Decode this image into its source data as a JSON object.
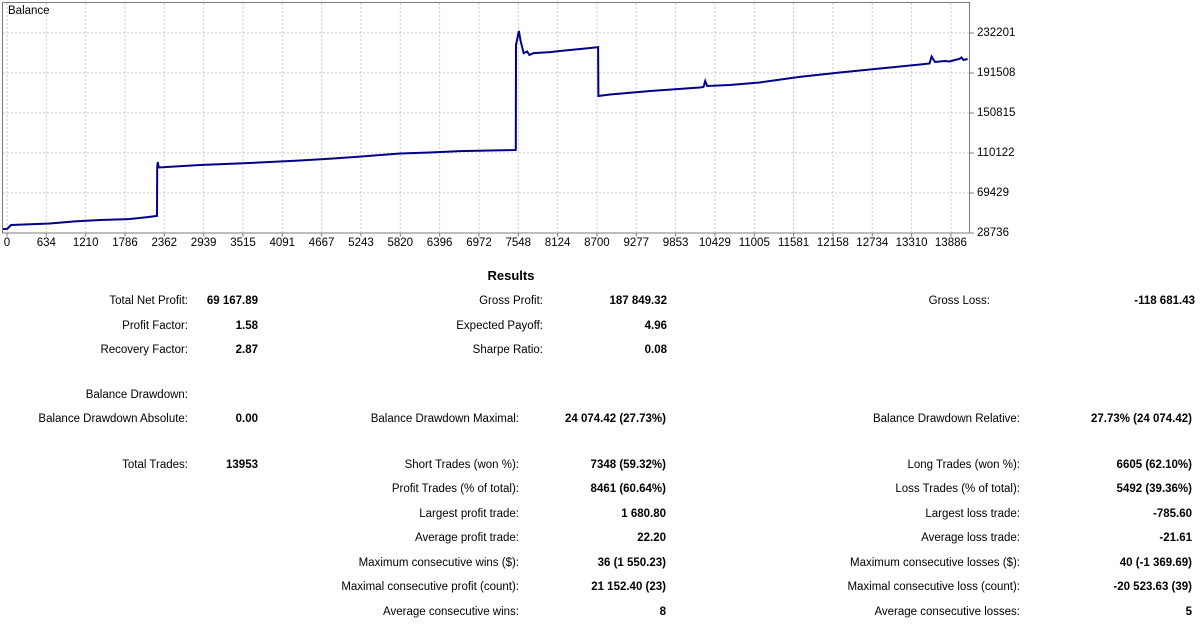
{
  "chart_data": [
    {
      "type": "line",
      "title": "Balance",
      "x_ticks": [
        0,
        634,
        1210,
        1786,
        2362,
        2939,
        3515,
        4091,
        4667,
        5243,
        5820,
        6396,
        6972,
        7548,
        8124,
        8700,
        9277,
        9853,
        10429,
        11005,
        11581,
        12158,
        12734,
        13310,
        13886
      ],
      "y_ticks": [
        232201,
        191508,
        150815,
        110122,
        69429,
        28736
      ],
      "x_range": [
        0,
        14160
      ],
      "y_range": [
        28736,
        263700
      ],
      "grid": true,
      "legend_position": "top-left",
      "line_color": "#00008B",
      "grid_color": "#c9c9c9",
      "border_color": "#7b7b7b",
      "series": [
        {
          "name": "Balance",
          "points": [
            [
              0,
              32800
            ],
            [
              60,
              36900
            ],
            [
              630,
              38400
            ],
            [
              1000,
              40500
            ],
            [
              1370,
              42000
            ],
            [
              1810,
              43000
            ],
            [
              2050,
              44700
            ],
            [
              2180,
              45900
            ],
            [
              2207,
              46100
            ],
            [
              2209,
              95400
            ],
            [
              2218,
              100900
            ],
            [
              2232,
              95400
            ],
            [
              2840,
              97900
            ],
            [
              3570,
              99900
            ],
            [
              4310,
              102500
            ],
            [
              4800,
              104500
            ],
            [
              5190,
              106500
            ],
            [
              5780,
              109600
            ],
            [
              6220,
              110600
            ],
            [
              6660,
              112100
            ],
            [
              7100,
              112700
            ],
            [
              7484,
              113200
            ],
            [
              7487,
              220000
            ],
            [
              7530,
              234200
            ],
            [
              7555,
              224000
            ],
            [
              7600,
              211800
            ],
            [
              7650,
              213400
            ],
            [
              7685,
              209800
            ],
            [
              7745,
              211800
            ],
            [
              7990,
              212800
            ],
            [
              8130,
              213900
            ],
            [
              8280,
              214900
            ],
            [
              8430,
              215900
            ],
            [
              8580,
              216900
            ],
            [
              8695,
              217900
            ],
            [
              8700,
              168100
            ],
            [
              8870,
              169600
            ],
            [
              9460,
              173200
            ],
            [
              10190,
              176800
            ],
            [
              10245,
              177300
            ],
            [
              10270,
              183400
            ],
            [
              10300,
              178300
            ],
            [
              10630,
              179300
            ],
            [
              11070,
              181800
            ],
            [
              11660,
              187500
            ],
            [
              12250,
              192000
            ],
            [
              12840,
              196100
            ],
            [
              13430,
              200200
            ],
            [
              13570,
              201200
            ],
            [
              13600,
              208300
            ],
            [
              13650,
              202700
            ],
            [
              13790,
              203700
            ],
            [
              13870,
              203200
            ],
            [
              13940,
              204700
            ],
            [
              14010,
              205700
            ],
            [
              14040,
              207300
            ],
            [
              14070,
              204700
            ],
            [
              14130,
              205700
            ]
          ]
        }
      ]
    },
    {
      "type": "table",
      "title": "Results",
      "rows": [
        {
          "cells": [
            {
              "l": "Total Net Profit:",
              "v": "69 167.89"
            },
            {
              "l": "Gross Profit:",
              "v": "187 849.32"
            },
            {
              "l": "Gross Loss:",
              "v": "-118 681.43"
            }
          ]
        },
        {
          "cells": [
            {
              "l": "Profit Factor:",
              "v": "1.58"
            },
            {
              "l": "Expected Payoff:",
              "v": "4.96"
            },
            {
              "l": "",
              "v": ""
            }
          ]
        },
        {
          "cells": [
            {
              "l": "Recovery Factor:",
              "v": "2.87"
            },
            {
              "l": "Sharpe Ratio:",
              "v": "0.08"
            },
            {
              "l": "",
              "v": ""
            }
          ]
        },
        {
          "cells": [
            {
              "l": "Balance Drawdown:",
              "v": ""
            },
            {
              "l": "",
              "v": ""
            },
            {
              "l": "",
              "v": ""
            }
          ]
        },
        {
          "cells": [
            {
              "l": "Balance Drawdown Absolute:",
              "v": "0.00"
            },
            {
              "l": "Balance Drawdown Maximal:",
              "v": "24 074.42 (27.73%)"
            },
            {
              "l": "Balance Drawdown Relative:",
              "v": "27.73% (24 074.42)"
            }
          ]
        },
        {
          "cells": [
            {
              "l": "Total Trades:",
              "v": "13953"
            },
            {
              "l": "Short Trades (won %):",
              "v": "7348 (59.32%)"
            },
            {
              "l": "Long Trades (won %):",
              "v": "6605 (62.10%)"
            }
          ]
        },
        {
          "cells": [
            {
              "l": "",
              "v": ""
            },
            {
              "l": "Profit Trades (% of total):",
              "v": "8461 (60.64%)"
            },
            {
              "l": "Loss Trades (% of total):",
              "v": "5492 (39.36%)"
            }
          ]
        },
        {
          "cells": [
            {
              "l": "",
              "v": ""
            },
            {
              "l": "Largest profit trade:",
              "v": "1 680.80"
            },
            {
              "l": "Largest loss trade:",
              "v": "-785.60"
            }
          ]
        },
        {
          "cells": [
            {
              "l": "",
              "v": ""
            },
            {
              "l": "Average profit trade:",
              "v": "22.20"
            },
            {
              "l": "Average loss trade:",
              "v": "-21.61"
            }
          ]
        },
        {
          "cells": [
            {
              "l": "",
              "v": ""
            },
            {
              "l": "Maximum consecutive wins ($):",
              "v": "36 (1 550.23)"
            },
            {
              "l": "Maximum consecutive losses ($):",
              "v": "40 (-1 369.69)"
            }
          ]
        },
        {
          "cells": [
            {
              "l": "",
              "v": ""
            },
            {
              "l": "Maximal consecutive profit (count):",
              "v": "21 152.40 (23)"
            },
            {
              "l": "Maximal consecutive loss (count):",
              "v": "-20 523.63 (39)"
            }
          ]
        },
        {
          "cells": [
            {
              "l": "",
              "v": ""
            },
            {
              "l": "Average consecutive wins:",
              "v": "8"
            },
            {
              "l": "Average consecutive losses:",
              "v": "5"
            }
          ]
        }
      ]
    }
  ]
}
